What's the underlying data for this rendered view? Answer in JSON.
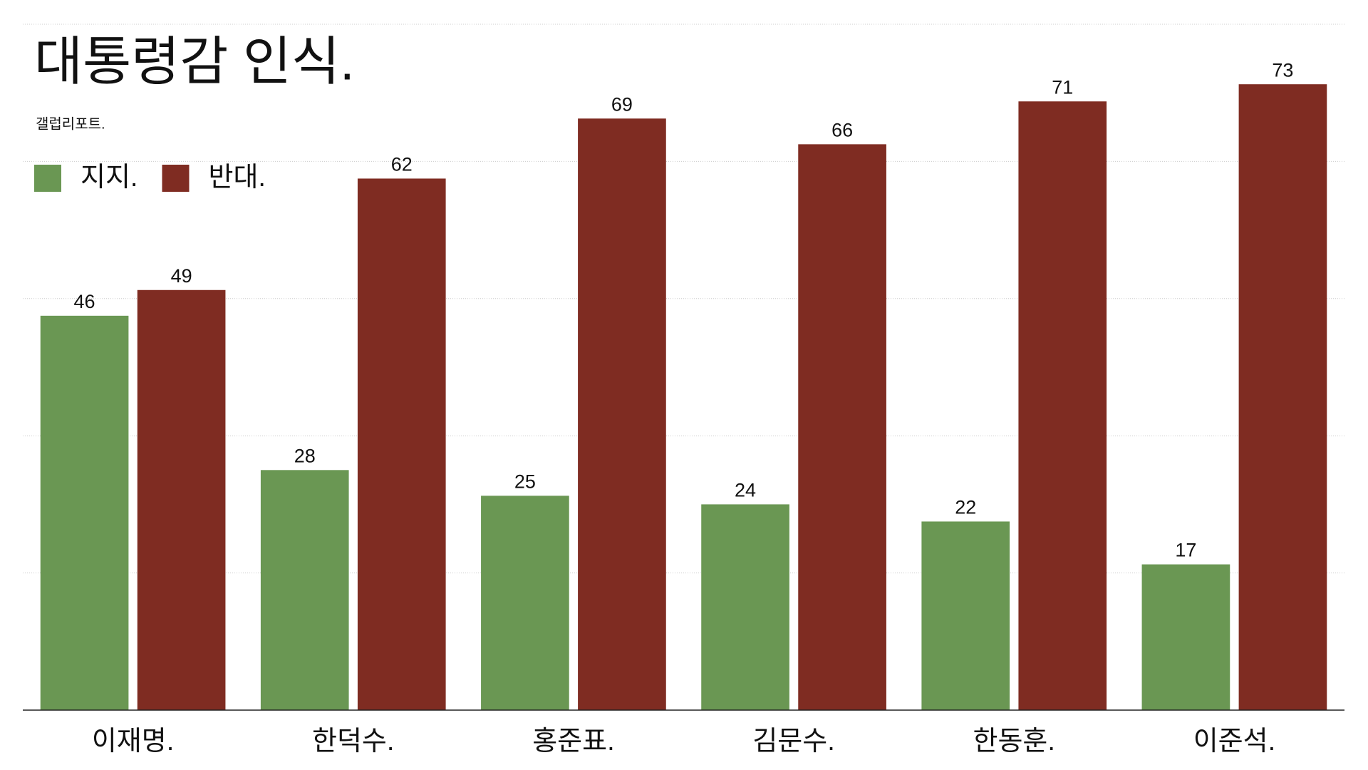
{
  "chart_data": {
    "type": "bar",
    "title": "대통령감 인식.",
    "subtitle": "갤럽리포트.",
    "categories": [
      "이재명.",
      "한덕수.",
      "홍준표.",
      "김문수.",
      "한동훈.",
      "이준석."
    ],
    "series": [
      {
        "name": "지지.",
        "color": "#6a9753",
        "values": [
          46,
          28,
          25,
          24,
          22,
          17
        ]
      },
      {
        "name": "반대.",
        "color": "#7f2c22",
        "values": [
          49,
          62,
          69,
          66,
          71,
          73
        ]
      }
    ],
    "ylim": [
      0,
      80
    ],
    "yticks": [
      0,
      16,
      32,
      48,
      64,
      80
    ],
    "grid": true
  }
}
